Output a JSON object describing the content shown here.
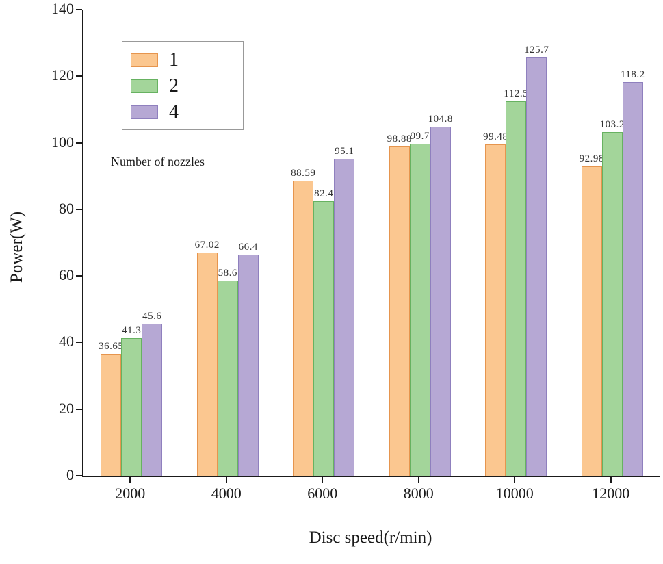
{
  "chart_data": {
    "type": "bar",
    "title": "",
    "xlabel": "Disc speed(r/min)",
    "ylabel": "Power(W)",
    "legend_title": "Number of nozzles",
    "legend_position": "upper-left",
    "grid": false,
    "categories": [
      "2000",
      "4000",
      "6000",
      "8000",
      "10000",
      "12000"
    ],
    "series": [
      {
        "name": "1",
        "fill": "#fbc790",
        "stroke": "#e6954e",
        "values": [
          36.65,
          67.02,
          88.59,
          98.88,
          99.48,
          92.98
        ]
      },
      {
        "name": "2",
        "fill": "#a3d59a",
        "stroke": "#67b261",
        "values": [
          41.3,
          58.6,
          82.4,
          99.7,
          112.5,
          103.2
        ]
      },
      {
        "name": "4",
        "fill": "#b6a8d4",
        "stroke": "#8f80be",
        "values": [
          45.6,
          66.4,
          95.1,
          104.8,
          125.7,
          118.2
        ]
      }
    ],
    "ylim": [
      0,
      140
    ],
    "yticks": [
      0,
      20,
      40,
      60,
      80,
      100,
      120,
      140
    ]
  }
}
